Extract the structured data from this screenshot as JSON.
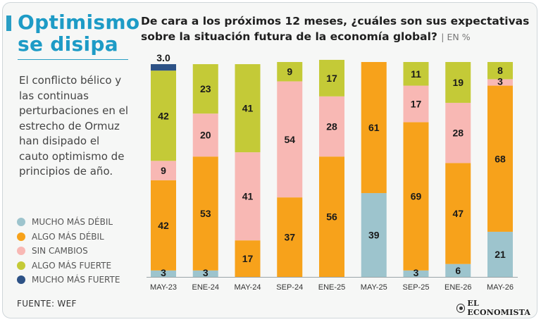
{
  "headline": {
    "line1": "Optimismo",
    "line2": "se disipa"
  },
  "description": "El conflicto bélico y las continuas perturbaciones en el estrecho de Ormuz han disipado el cauto optimismo de principios de año.",
  "question": "De cara a los próximos 12 meses, ¿cuáles son sus expectativas sobre la situación futura de la economía global?",
  "unit": "| EN %",
  "source": "FUENTE: WEF",
  "publisher": "EL ECONOMISTA",
  "legend": [
    {
      "label": "MUCHO MÁS DÉBIL",
      "color": "#9dc4cd"
    },
    {
      "label": "ALGO MÁS DÉBIL",
      "color": "#f7a21b"
    },
    {
      "label": "SIN CAMBIOS",
      "color": "#f8b8b4"
    },
    {
      "label": "ALGO MÁS FUERTE",
      "color": "#c4ca37"
    },
    {
      "label": "MUCHO MÁS FUERTE",
      "color": "#2d5286"
    }
  ],
  "chart_data": {
    "type": "bar",
    "stacked": true,
    "categories": [
      "MAY-23",
      "ENE-24",
      "MAY-24",
      "SEP-24",
      "ENE-25",
      "MAY-25",
      "SEP-25",
      "ENE-26",
      "MAY-26"
    ],
    "series": [
      {
        "name": "MUCHO MÁS DÉBIL",
        "color": "#9dc4cd",
        "values": [
          3,
          3,
          0,
          0,
          0,
          39,
          3,
          6,
          21
        ],
        "labels": [
          "3",
          "3",
          "",
          "",
          "",
          "39",
          "3",
          "6",
          "21"
        ]
      },
      {
        "name": "ALGO MÁS DÉBIL",
        "color": "#f7a21b",
        "values": [
          42,
          53,
          17,
          37,
          56,
          61,
          69,
          47,
          68
        ],
        "labels": [
          "42",
          "53",
          "17",
          "37",
          "56",
          "61",
          "69",
          "47",
          "68"
        ]
      },
      {
        "name": "SIN CAMBIOS",
        "color": "#f8b8b4",
        "values": [
          9,
          20,
          41,
          54,
          28,
          0,
          17,
          28,
          3
        ],
        "labels": [
          "9",
          "20",
          "41",
          "54",
          "28",
          "",
          "17",
          "28",
          "3"
        ]
      },
      {
        "name": "ALGO MÁS FUERTE",
        "color": "#c4ca37",
        "values": [
          42,
          23,
          41,
          9,
          17,
          0,
          11,
          19,
          8
        ],
        "labels": [
          "42",
          "23",
          "41",
          "9",
          "17",
          "",
          "11",
          "19",
          "8"
        ]
      },
      {
        "name": "MUCHO MÁS FUERTE",
        "color": "#2d5286",
        "values": [
          3,
          0,
          0,
          0,
          0,
          0,
          0,
          0,
          0
        ],
        "labels": [
          "3.0",
          "",
          "",
          "",
          "",
          "",
          "",
          "",
          ""
        ]
      }
    ],
    "ylim": [
      0,
      100
    ],
    "grid": false,
    "legend_position": "left"
  }
}
